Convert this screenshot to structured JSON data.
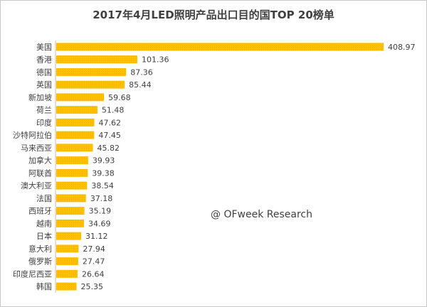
{
  "chart_data": {
    "type": "bar",
    "orientation": "horizontal",
    "title": "2017年4月LED照明产品出口目的国TOP 20榜单",
    "categories": [
      "美国",
      "香港",
      "德国",
      "英国",
      "新加坡",
      "荷兰",
      "印度",
      "沙特阿拉伯",
      "马来西亚",
      "加拿大",
      "阿联酋",
      "澳大利亚",
      "法国",
      "西班牙",
      "越南",
      "日本",
      "意大利",
      "俄罗斯",
      "印度尼西亚",
      "韩国"
    ],
    "values": [
      408.97,
      101.36,
      87.36,
      85.44,
      59.68,
      51.48,
      47.62,
      47.45,
      45.82,
      39.93,
      39.38,
      38.54,
      37.18,
      35.19,
      34.69,
      31.12,
      27.94,
      27.47,
      26.64,
      25.35
    ],
    "value_labels": [
      "408.97",
      "101.36",
      "87.36",
      "85.44",
      "59.68",
      "51.48",
      "47.62",
      "47.45",
      "45.82",
      "39.93",
      "39.38",
      "38.54",
      "37.18",
      "35.19",
      "34.69",
      "31.12",
      "27.94",
      "27.47",
      "26.64",
      "25.35"
    ],
    "xlim": [
      0,
      408.97
    ],
    "grid": false,
    "legend": "none",
    "bar_color": "#ffc000",
    "axis_color": "#bfbfbf"
  },
  "watermark": "@ OFweek Research"
}
